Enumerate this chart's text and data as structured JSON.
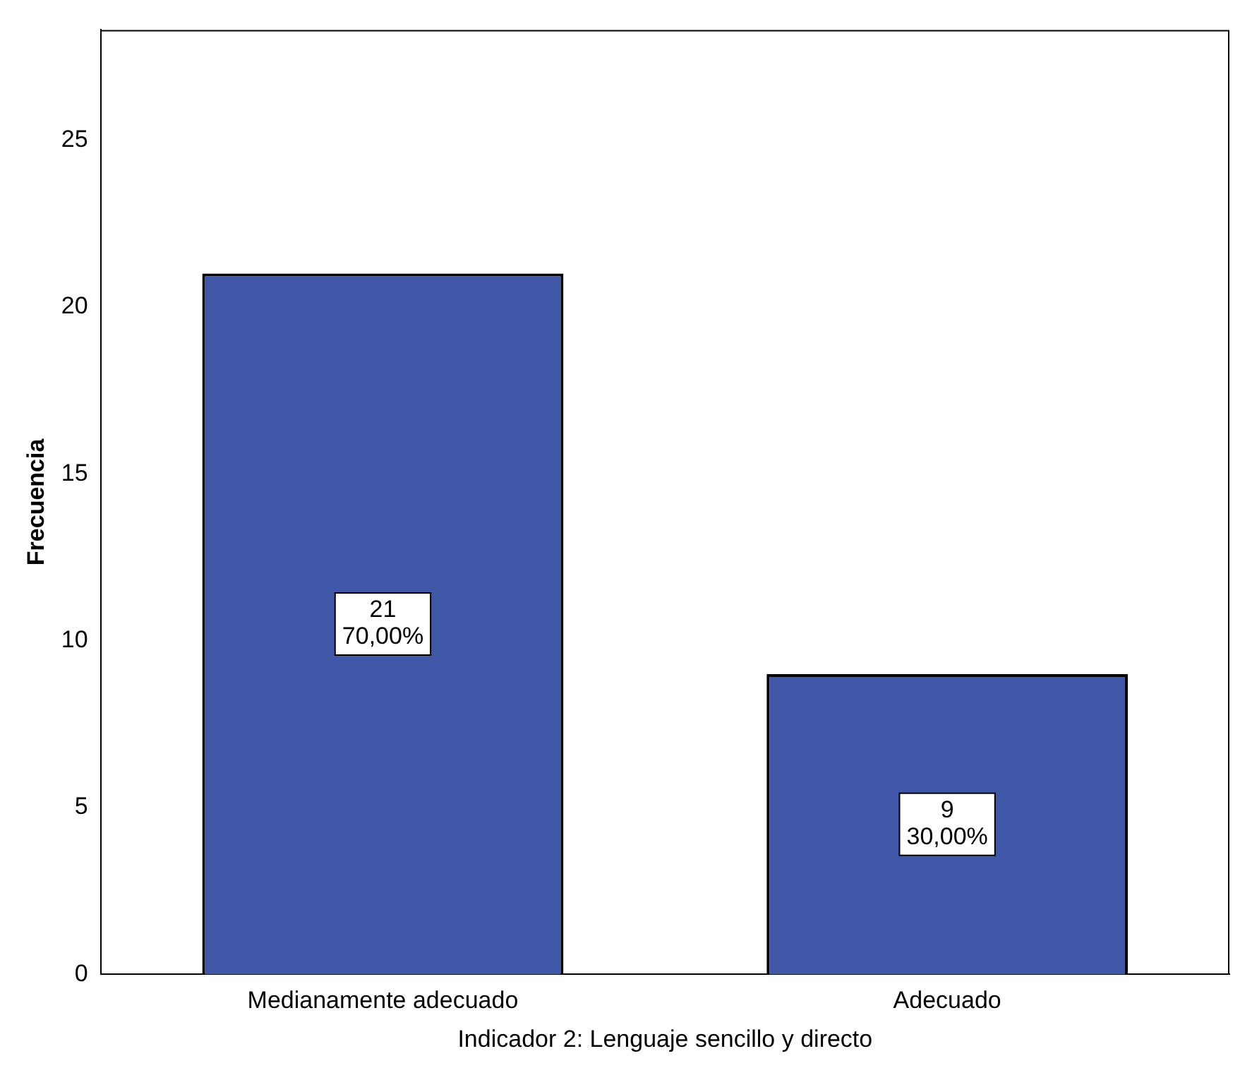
{
  "chart_data": {
    "type": "bar",
    "xlabel": "Indicador 2: Lenguaje sencillo y directo",
    "ylabel": "Frecuencia",
    "categories": [
      "Medianamente adecuado",
      "Adecuado"
    ],
    "values": [
      21,
      9
    ],
    "value_labels": [
      "21\n70,00%",
      "9\n30,00%"
    ],
    "color": "#3f57a6",
    "ylim": [
      0,
      28.3
    ],
    "yticks": [
      0,
      5,
      10,
      15,
      20,
      25
    ],
    "grid": false,
    "legend": false
  }
}
